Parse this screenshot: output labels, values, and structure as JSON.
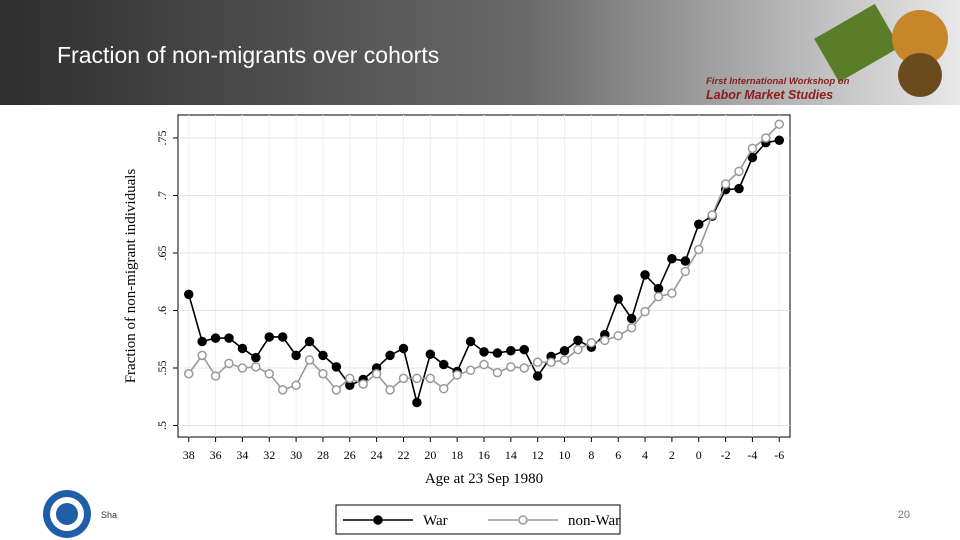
{
  "slide": {
    "title": "Fraction of non-migrants over cohorts",
    "workshop": [
      "First International Workshop on",
      "Labor Market Studies"
    ],
    "footer": "Sha",
    "page_number": "20"
  },
  "chart_data": {
    "type": "line",
    "xlabel": "Age at 23 Sep 1980",
    "ylabel": "Fraction of non-migrant individuals",
    "x": [
      38,
      37,
      36,
      35,
      34,
      33,
      32,
      31,
      30,
      29,
      28,
      27,
      26,
      25,
      24,
      23,
      22,
      21,
      20,
      19,
      18,
      17,
      16,
      15,
      14,
      13,
      12,
      11,
      10,
      9,
      8,
      7,
      6,
      5,
      4,
      3,
      2,
      1,
      0,
      -1,
      -2,
      -3,
      -4,
      -5,
      -6
    ],
    "series": [
      {
        "name": "War",
        "color": "#000000",
        "filled": true,
        "values": [
          0.614,
          0.573,
          0.576,
          0.576,
          0.567,
          0.559,
          0.577,
          0.577,
          0.561,
          0.573,
          0.561,
          0.551,
          0.535,
          0.54,
          0.55,
          0.561,
          0.567,
          0.52,
          0.562,
          0.553,
          0.547,
          0.573,
          0.564,
          0.563,
          0.565,
          0.566,
          0.543,
          0.56,
          0.565,
          0.574,
          0.568,
          0.579,
          0.61,
          0.593,
          0.631,
          0.619,
          0.645,
          0.643,
          0.675,
          0.682,
          0.705,
          0.706,
          0.733,
          0.746,
          0.748
        ]
      },
      {
        "name": "non-War",
        "color": "#999999",
        "filled": false,
        "values": [
          0.545,
          0.561,
          0.543,
          0.554,
          0.55,
          0.551,
          0.545,
          0.531,
          0.535,
          0.557,
          0.545,
          0.531,
          0.541,
          0.536,
          0.545,
          0.531,
          0.541,
          0.541,
          0.541,
          0.532,
          0.544,
          0.548,
          0.553,
          0.546,
          0.551,
          0.55,
          0.555,
          0.555,
          0.557,
          0.566,
          0.572,
          0.574,
          0.578,
          0.585,
          0.599,
          0.612,
          0.615,
          0.634,
          0.653,
          0.683,
          0.71,
          0.721,
          0.741,
          0.75,
          0.762
        ]
      }
    ],
    "xlim": [
      38.8,
      -6.8
    ],
    "ylim": [
      0.49,
      0.77
    ],
    "xticks": [
      38,
      36,
      34,
      32,
      30,
      28,
      26,
      24,
      22,
      20,
      18,
      16,
      14,
      12,
      10,
      8,
      6,
      4,
      2,
      0,
      -2,
      -4,
      -6
    ],
    "yticks": [
      {
        "value": 0.5,
        "label": ".5"
      },
      {
        "value": 0.55,
        "label": ".55"
      },
      {
        "value": 0.6,
        "label": ".6"
      },
      {
        "value": 0.65,
        "label": ".65"
      },
      {
        "value": 0.7,
        "label": ".7"
      },
      {
        "value": 0.75,
        "label": ".75"
      }
    ],
    "grid": true,
    "legend": "bottom"
  }
}
